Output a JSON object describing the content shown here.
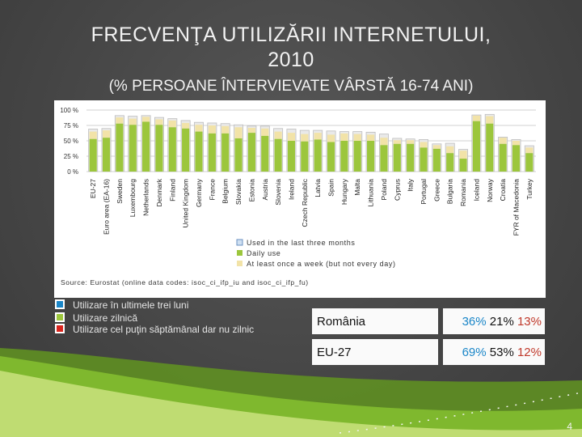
{
  "slide": {
    "title_line1": "FRECVENŢA  UTILIZĂRII  INTERNETULUI,",
    "title_line2": "2010",
    "subtitle": "(% PERSOANE ÎNTERVIEVATE VÂRSTĂ  16-74 ANI)",
    "page_number": "4"
  },
  "chart_data": {
    "type": "bar",
    "title": "",
    "ylim": [
      0,
      100
    ],
    "yticks": [
      0,
      25,
      50,
      75,
      100
    ],
    "ytick_labels": [
      "0 %",
      "25 %",
      "50 %",
      "75 %",
      "100 %"
    ],
    "categories": [
      "EU-27",
      "Euro area (EA-16)",
      "Sweden",
      "Luxembourg",
      "Netherlands",
      "Denmark",
      "Finland",
      "United Kingdom",
      "Germany",
      "France",
      "Belgium",
      "Slovakia",
      "Estonia",
      "Austria",
      "Slovenia",
      "Ireland",
      "Czech Republic",
      "Latvia",
      "Spain",
      "Hungary",
      "Malta",
      "Lithuania",
      "Poland",
      "Cyprus",
      "Italy",
      "Portugal",
      "Greece",
      "Bulgaria",
      "Romania",
      "Iceland",
      "Norway",
      "Croatia",
      "FYR of Macedonia",
      "Turkey"
    ],
    "series": [
      {
        "name": "Used in the last three months",
        "color": "#e9e9e9",
        "values": [
          69,
          70,
          91,
          90,
          91,
          88,
          86,
          83,
          80,
          79,
          78,
          76,
          74,
          74,
          70,
          69,
          67,
          67,
          66,
          65,
          65,
          64,
          61,
          54,
          53,
          52,
          45,
          46,
          36,
          92,
          93,
          56,
          52,
          42
        ]
      },
      {
        "name": "Daily use",
        "color": "#9cc63c",
        "values": [
          53,
          55,
          78,
          76,
          81,
          76,
          72,
          70,
          65,
          62,
          62,
          54,
          63,
          58,
          53,
          50,
          49,
          52,
          48,
          50,
          50,
          50,
          43,
          45,
          45,
          39,
          37,
          30,
          21,
          82,
          78,
          45,
          43,
          30
        ]
      },
      {
        "name": "At least once a week (but not every day)",
        "color": "#f2e3a8",
        "values": [
          12,
          12,
          10,
          10,
          8,
          9,
          11,
          9,
          11,
          13,
          12,
          18,
          8,
          12,
          12,
          13,
          12,
          11,
          12,
          12,
          11,
          10,
          12,
          6,
          6,
          9,
          6,
          11,
          13,
          9,
          12,
          10,
          7,
          9
        ]
      }
    ],
    "legend": {
      "items": [
        "Used in the last three months",
        "Daily use",
        "At least once a week (but not every day)"
      ],
      "position": "bottom-right"
    },
    "source": "Source: Eurostat (online data codes: isoc_ci_ifp_iu and isoc_ci_ifp_fu)"
  },
  "legend_ro": {
    "items": [
      {
        "label": "Utilizare în ultimele trei luni",
        "color": "#1a86c8"
      },
      {
        "label": "Utilizare zilnică",
        "color": "#9cc63c"
      },
      {
        "label": "Utilizare cel puţin săptămânal dar nu zilnic",
        "color": "#d9251d"
      }
    ]
  },
  "stats_table": {
    "rows": [
      {
        "country": "România",
        "used": "36%",
        "daily": "21%",
        "weekly": "13%"
      },
      {
        "country": "EU-27",
        "used": "69%",
        "daily": "53%",
        "weekly": "12%"
      }
    ]
  }
}
